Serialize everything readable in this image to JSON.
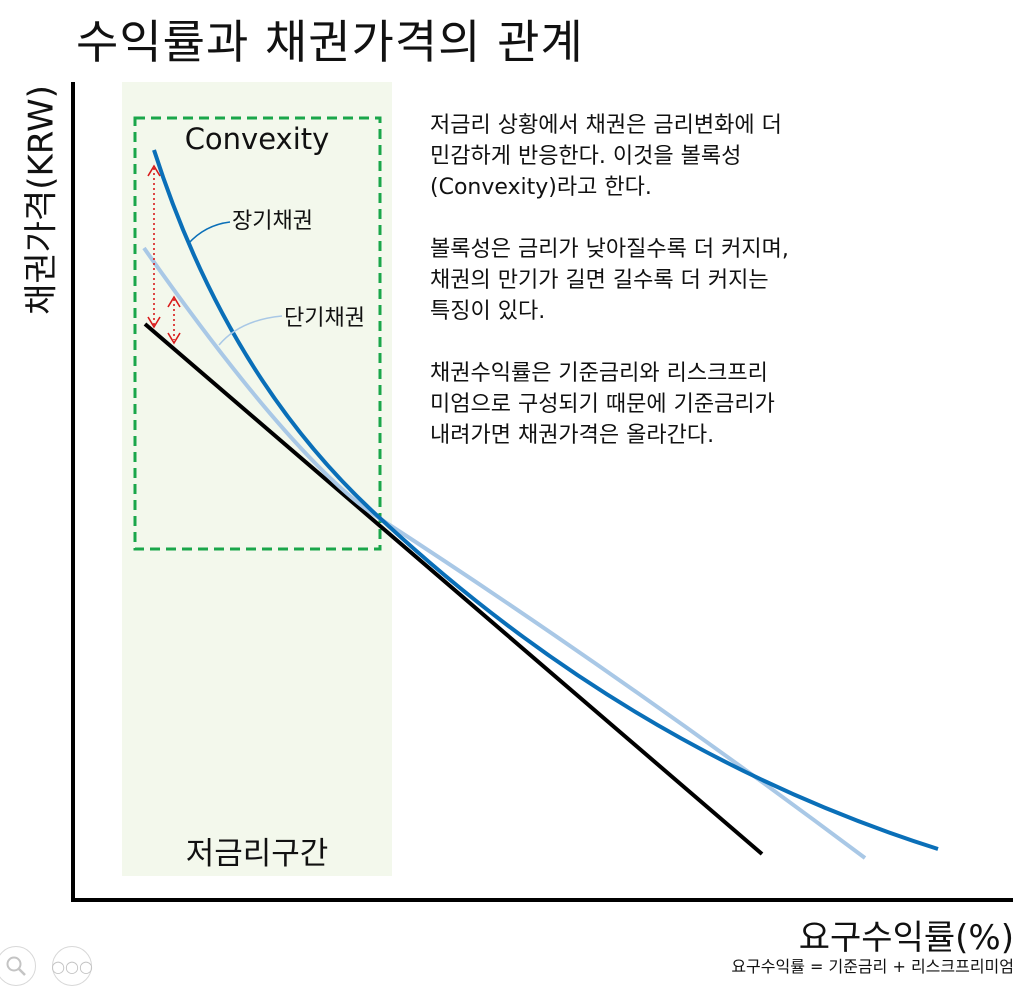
{
  "title": "수익률과 채권가격의 관계",
  "y_axis_label": "채권가격(KRW)",
  "x_axis_label": "요구수익률(%)",
  "formula": "요구수익률 = 기준금리 + 리스크프리미엄",
  "low_rate_zone_label": "저금리구간",
  "convexity_label": "Convexity",
  "curves": {
    "long_bond_label": "장기채권",
    "short_bond_label": "단기채권",
    "long_bond_color": "#0a6fb8",
    "short_bond_color": "#a9c8e6",
    "tangent_color": "#000000",
    "arrow_color": "#d81b1b",
    "zone_fill": "#f3f8ec",
    "zone_border": "#1aa64a"
  },
  "description": [
    "저금리 상황에서 채권은 금리변화에 더\n민감하게 반응한다. 이것을 볼록성\n(Convexity)라고 한다.",
    "볼록성은 금리가 낮아질수록 더 커지며,\n채권의 만기가 길면 길수록 더 커지는\n특징이 있다.",
    "채권수익률은 기준금리와 리스크프리\n미엄으로 구성되기 때문에 기준금리가\n내려가면 채권가격은 올라간다."
  ],
  "controls": {
    "zoom_icon": "magnifier-icon",
    "more_icon": "ellipsis-icon"
  }
}
